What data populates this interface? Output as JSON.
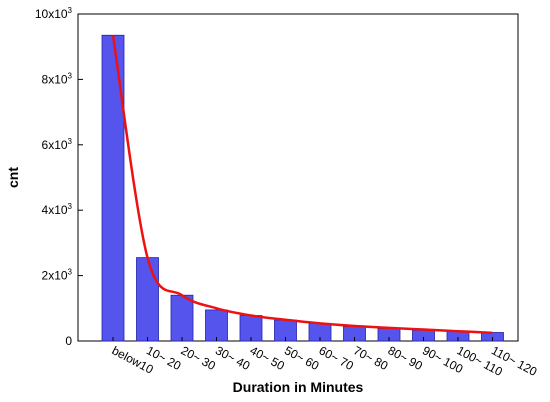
{
  "chart_data": {
    "type": "bar",
    "xlabel": "Duration in Minutes",
    "ylabel": "cnt",
    "ylim": [
      0,
      10000
    ],
    "y_ticks": [
      {
        "value": 0,
        "label": "0"
      },
      {
        "value": 2000,
        "label": "2x10",
        "exp": "3"
      },
      {
        "value": 4000,
        "label": "4x10",
        "exp": "3"
      },
      {
        "value": 6000,
        "label": "6x10",
        "exp": "3"
      },
      {
        "value": 8000,
        "label": "8x10",
        "exp": "3"
      },
      {
        "value": 10000,
        "label": "10x10",
        "exp": "3"
      }
    ],
    "categories": [
      "below10",
      "10~ 20",
      "20~ 30",
      "30~ 40",
      "40~ 50",
      "50~ 60",
      "60~ 70",
      "70~ 80",
      "80~ 90",
      "90~ 100",
      "100~ 110",
      "110~ 120"
    ],
    "series": [
      {
        "type": "bar",
        "values": [
          9350,
          2550,
          1400,
          950,
          780,
          640,
          540,
          440,
          380,
          330,
          300,
          260
        ],
        "color": "#5555ee",
        "stroke": "#2222aa"
      },
      {
        "type": "line",
        "values": [
          9350,
          2550,
          1400,
          1000,
          780,
          650,
          540,
          460,
          400,
          350,
          300,
          250
        ],
        "color": "#ee1111"
      }
    ],
    "grid": false,
    "legend": "none"
  }
}
